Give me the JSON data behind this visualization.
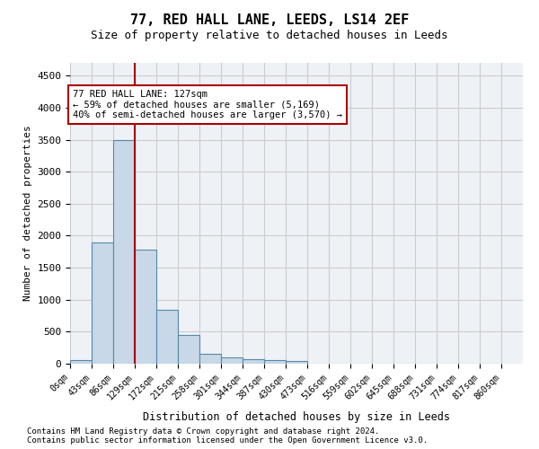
{
  "title": "77, RED HALL LANE, LEEDS, LS14 2EF",
  "subtitle": "Size of property relative to detached houses in Leeds",
  "xlabel": "Distribution of detached houses by size in Leeds",
  "ylabel": "Number of detached properties",
  "bar_values": [
    50,
    1900,
    3500,
    1780,
    840,
    450,
    160,
    100,
    65,
    55,
    40,
    0,
    0,
    0,
    0,
    0,
    0,
    0,
    0,
    0
  ],
  "bin_labels": [
    "0sqm",
    "43sqm",
    "86sqm",
    "129sqm",
    "172sqm",
    "215sqm",
    "258sqm",
    "301sqm",
    "344sqm",
    "387sqm",
    "430sqm",
    "473sqm",
    "516sqm",
    "559sqm",
    "602sqm",
    "645sqm",
    "688sqm",
    "731sqm",
    "774sqm",
    "817sqm",
    "860sqm"
  ],
  "bar_color": "#c8d8e8",
  "bar_edge_color": "#5588aa",
  "grid_color": "#cccccc",
  "bg_color": "#eef2f7",
  "vline_color": "#aa0000",
  "annotation_text": "77 RED HALL LANE: 127sqm\n← 59% of detached houses are smaller (5,169)\n40% of semi-detached houses are larger (3,570) →",
  "annotation_box_color": "#ffffff",
  "annotation_box_edge": "#aa0000",
  "ylim": [
    0,
    4700
  ],
  "yticks": [
    0,
    500,
    1000,
    1500,
    2000,
    2500,
    3000,
    3500,
    4000,
    4500
  ],
  "footer_line1": "Contains HM Land Registry data © Crown copyright and database right 2024.",
  "footer_line2": "Contains public sector information licensed under the Open Government Licence v3.0.",
  "bin_width": 43,
  "num_bins": 20,
  "vline_x": 129
}
